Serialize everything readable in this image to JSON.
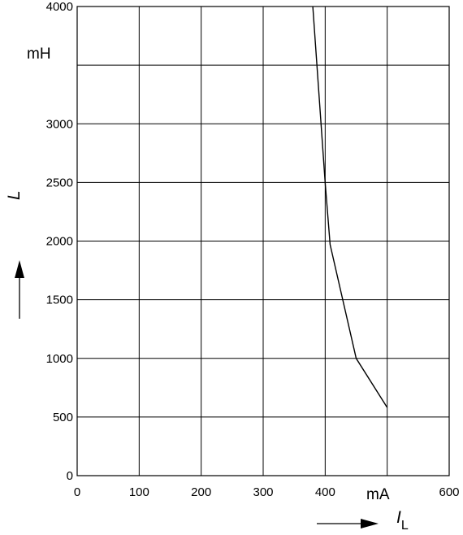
{
  "chart_data": {
    "type": "line",
    "title": "",
    "xlabel": "I",
    "xlabel_subscript": "L",
    "x_unit": "mA",
    "ylabel": "L",
    "y_unit": "mH",
    "xlim": [
      0,
      600
    ],
    "ylim": [
      0,
      4000
    ],
    "x_ticks": [
      0,
      100,
      200,
      300,
      400,
      500,
      600
    ],
    "x_tick_labels": [
      "0",
      "100",
      "200",
      "300",
      "400",
      "",
      "600"
    ],
    "y_ticks": [
      0,
      500,
      1000,
      1500,
      2000,
      2500,
      3000,
      3500,
      4000
    ],
    "y_tick_labels": [
      "0",
      "500",
      "1000",
      "1500",
      "2000",
      "2500",
      "3000",
      "",
      "4000"
    ],
    "grid": true,
    "series": [
      {
        "x": [
          380,
          400,
          408,
          450,
          500
        ],
        "y": [
          4000,
          2500,
          1970,
          1000,
          580
        ]
      }
    ]
  }
}
